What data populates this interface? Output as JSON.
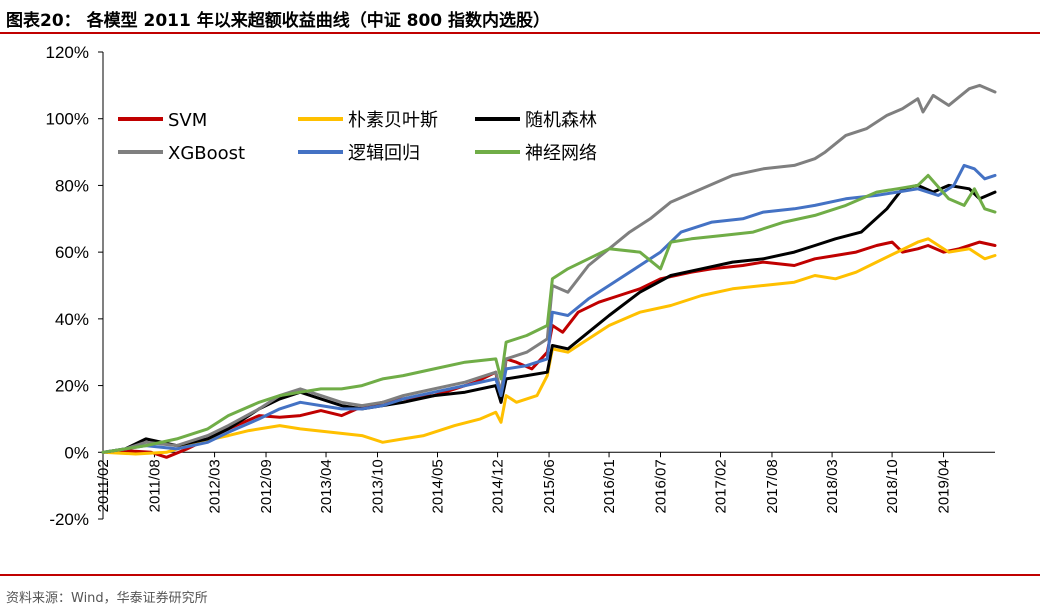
{
  "header": {
    "title": "图表20： 各模型 2011 年以来超额收益曲线（中证 800 指数内选股）"
  },
  "footer": {
    "source": "资料来源：Wind，华泰证券研究所"
  },
  "colors": {
    "rule": "#c00000"
  },
  "chart_data": {
    "type": "line",
    "title": "",
    "xlabel": "",
    "ylabel": "",
    "ylim": [
      -20,
      120
    ],
    "y_ticks": [
      -20,
      0,
      20,
      40,
      60,
      80,
      100,
      120
    ],
    "y_tick_labels": [
      "-20%",
      "0%",
      "20%",
      "40%",
      "60%",
      "80%",
      "100%",
      "120%"
    ],
    "x_tick_labels": [
      "2011/02",
      "2011/08",
      "2012/03",
      "2012/09",
      "2013/04",
      "2013/10",
      "2014/05",
      "2014/12",
      "2015/06",
      "2016/01",
      "2016/07",
      "2017/02",
      "2017/08",
      "2018/03",
      "2018/10",
      "2019/04"
    ],
    "x_tick_dates": [
      2011.083,
      2011.583,
      2012.167,
      2012.667,
      2013.25,
      2013.75,
      2014.333,
      2014.917,
      2015.417,
      2016.0,
      2016.5,
      2017.083,
      2017.583,
      2018.167,
      2018.75,
      2019.25
    ],
    "x_range": [
      2011.083,
      2019.75
    ],
    "legend_position": "top-left",
    "grid": false,
    "series": [
      {
        "name": "SVM",
        "color": "#c00000",
        "x": [
          2011.083,
          2011.3,
          2011.55,
          2011.7,
          2011.9,
          2012.1,
          2012.3,
          2012.6,
          2012.8,
          2013.0,
          2013.2,
          2013.4,
          2013.55,
          2013.8,
          2014.0,
          2014.3,
          2014.5,
          2014.7,
          2014.9,
          2014.95,
          2015.0,
          2015.1,
          2015.25,
          2015.4,
          2015.45,
          2015.55,
          2015.7,
          2015.9,
          2016.1,
          2016.3,
          2016.5,
          2016.8,
          2017.0,
          2017.3,
          2017.5,
          2017.8,
          2018.0,
          2018.2,
          2018.4,
          2018.6,
          2018.75,
          2018.85,
          2019.0,
          2019.1,
          2019.25,
          2019.4,
          2019.6,
          2019.75
        ],
        "y": [
          0,
          0.5,
          0,
          -1.5,
          1,
          4,
          7,
          11,
          10.5,
          11,
          12.5,
          11,
          13,
          15,
          16,
          17,
          19,
          21,
          24,
          15,
          28,
          27,
          25,
          30,
          38,
          36,
          42,
          45,
          47,
          49,
          52,
          54,
          55,
          56,
          57,
          56,
          58,
          59,
          60,
          62,
          63,
          60,
          61,
          62,
          60,
          61,
          63,
          62
        ]
      },
      {
        "name": "朴素贝叶斯",
        "color": "#ffc000",
        "x": [
          2011.083,
          2011.4,
          2011.7,
          2012.0,
          2012.3,
          2012.5,
          2012.8,
          2013.0,
          2013.3,
          2013.6,
          2013.8,
          2014.0,
          2014.2,
          2014.5,
          2014.75,
          2014.9,
          2014.95,
          2015.0,
          2015.1,
          2015.3,
          2015.4,
          2015.45,
          2015.6,
          2015.8,
          2016.0,
          2016.3,
          2016.6,
          2016.9,
          2017.2,
          2017.5,
          2017.8,
          2018.0,
          2018.2,
          2018.4,
          2018.6,
          2018.8,
          2019.0,
          2019.1,
          2019.3,
          2019.5,
          2019.65,
          2019.75
        ],
        "y": [
          0,
          -0.5,
          0,
          3,
          5,
          6.5,
          8,
          7,
          6,
          5,
          3,
          4,
          5,
          8,
          10,
          12,
          9,
          17,
          15,
          17,
          23,
          31,
          30,
          34,
          38,
          42,
          44,
          47,
          49,
          50,
          51,
          53,
          52,
          54,
          57,
          60,
          63,
          64,
          60,
          61,
          58,
          59
        ]
      },
      {
        "name": "随机森林",
        "color": "#000000",
        "x": [
          2011.083,
          2011.3,
          2011.5,
          2011.8,
          2012.1,
          2012.3,
          2012.6,
          2012.8,
          2013.0,
          2013.2,
          2013.4,
          2013.6,
          2013.8,
          2014.0,
          2014.3,
          2014.6,
          2014.9,
          2014.95,
          2015.0,
          2015.2,
          2015.4,
          2015.45,
          2015.6,
          2015.8,
          2016.0,
          2016.3,
          2016.6,
          2016.9,
          2017.2,
          2017.5,
          2017.8,
          2018.0,
          2018.2,
          2018.45,
          2018.7,
          2018.85,
          2019.0,
          2019.15,
          2019.3,
          2019.5,
          2019.6,
          2019.75
        ],
        "y": [
          0,
          1,
          4,
          2,
          4,
          7,
          13,
          16,
          18,
          16,
          14,
          13,
          14,
          15,
          17,
          18,
          20,
          15,
          22,
          23,
          24,
          32,
          31,
          36,
          41,
          48,
          53,
          55,
          57,
          58,
          60,
          62,
          64,
          66,
          73,
          79,
          80,
          78,
          80,
          79,
          76,
          78
        ]
      },
      {
        "name": "XGBoost",
        "color": "#7f7f7f",
        "x": [
          2011.083,
          2011.3,
          2011.5,
          2011.8,
          2012.1,
          2012.3,
          2012.6,
          2012.8,
          2013.0,
          2013.2,
          2013.4,
          2013.6,
          2013.8,
          2014.0,
          2014.3,
          2014.6,
          2014.9,
          2014.95,
          2015.0,
          2015.2,
          2015.4,
          2015.45,
          2015.6,
          2015.8,
          2016.0,
          2016.2,
          2016.4,
          2016.6,
          2016.9,
          2017.2,
          2017.5,
          2017.8,
          2018.0,
          2018.1,
          2018.3,
          2018.5,
          2018.7,
          2018.85,
          2019.0,
          2019.05,
          2019.15,
          2019.3,
          2019.5,
          2019.6,
          2019.75
        ],
        "y": [
          0,
          1,
          3,
          2,
          5,
          8,
          13,
          17,
          19,
          17,
          15,
          14,
          15,
          17,
          19,
          21,
          24,
          18,
          28,
          30,
          34,
          50,
          48,
          56,
          61,
          66,
          70,
          75,
          79,
          83,
          85,
          86,
          88,
          90,
          95,
          97,
          101,
          103,
          106,
          102,
          107,
          104,
          109,
          110,
          108
        ]
      },
      {
        "name": "逻辑回归",
        "color": "#4472c4",
        "x": [
          2011.083,
          2011.3,
          2011.5,
          2011.8,
          2012.1,
          2012.3,
          2012.6,
          2012.8,
          2013.0,
          2013.2,
          2013.4,
          2013.6,
          2013.8,
          2014.0,
          2014.3,
          2014.6,
          2014.9,
          2014.95,
          2015.0,
          2015.2,
          2015.4,
          2015.45,
          2015.6,
          2015.8,
          2016.0,
          2016.3,
          2016.5,
          2016.7,
          2017.0,
          2017.3,
          2017.5,
          2017.8,
          2018.0,
          2018.3,
          2018.6,
          2018.8,
          2019.0,
          2019.2,
          2019.35,
          2019.45,
          2019.55,
          2019.65,
          2019.75
        ],
        "y": [
          0,
          1,
          2,
          1,
          3,
          6,
          10,
          13,
          15,
          14,
          13,
          13,
          14,
          16,
          18,
          20,
          22,
          17,
          25,
          26,
          28,
          42,
          41,
          46,
          50,
          56,
          60,
          66,
          69,
          70,
          72,
          73,
          74,
          76,
          77,
          78,
          79,
          77,
          80,
          86,
          85,
          82,
          83
        ]
      },
      {
        "name": "神经网络",
        "color": "#70ad47",
        "x": [
          2011.083,
          2011.3,
          2011.5,
          2011.8,
          2012.1,
          2012.3,
          2012.6,
          2012.8,
          2013.0,
          2013.2,
          2013.4,
          2013.6,
          2013.8,
          2014.0,
          2014.3,
          2014.6,
          2014.9,
          2014.95,
          2015.0,
          2015.2,
          2015.4,
          2015.45,
          2015.6,
          2015.8,
          2016.0,
          2016.3,
          2016.5,
          2016.6,
          2016.8,
          2017.1,
          2017.4,
          2017.7,
          2018.0,
          2018.3,
          2018.6,
          2018.8,
          2019.0,
          2019.1,
          2019.3,
          2019.45,
          2019.55,
          2019.65,
          2019.75
        ],
        "y": [
          0,
          1,
          2,
          4,
          7,
          11,
          15,
          17,
          18,
          19,
          19,
          20,
          22,
          23,
          25,
          27,
          28,
          22,
          33,
          35,
          38,
          52,
          55,
          58,
          61,
          60,
          55,
          63,
          64,
          65,
          66,
          69,
          71,
          74,
          78,
          79,
          80,
          83,
          76,
          74,
          79,
          73,
          72
        ]
      }
    ]
  }
}
